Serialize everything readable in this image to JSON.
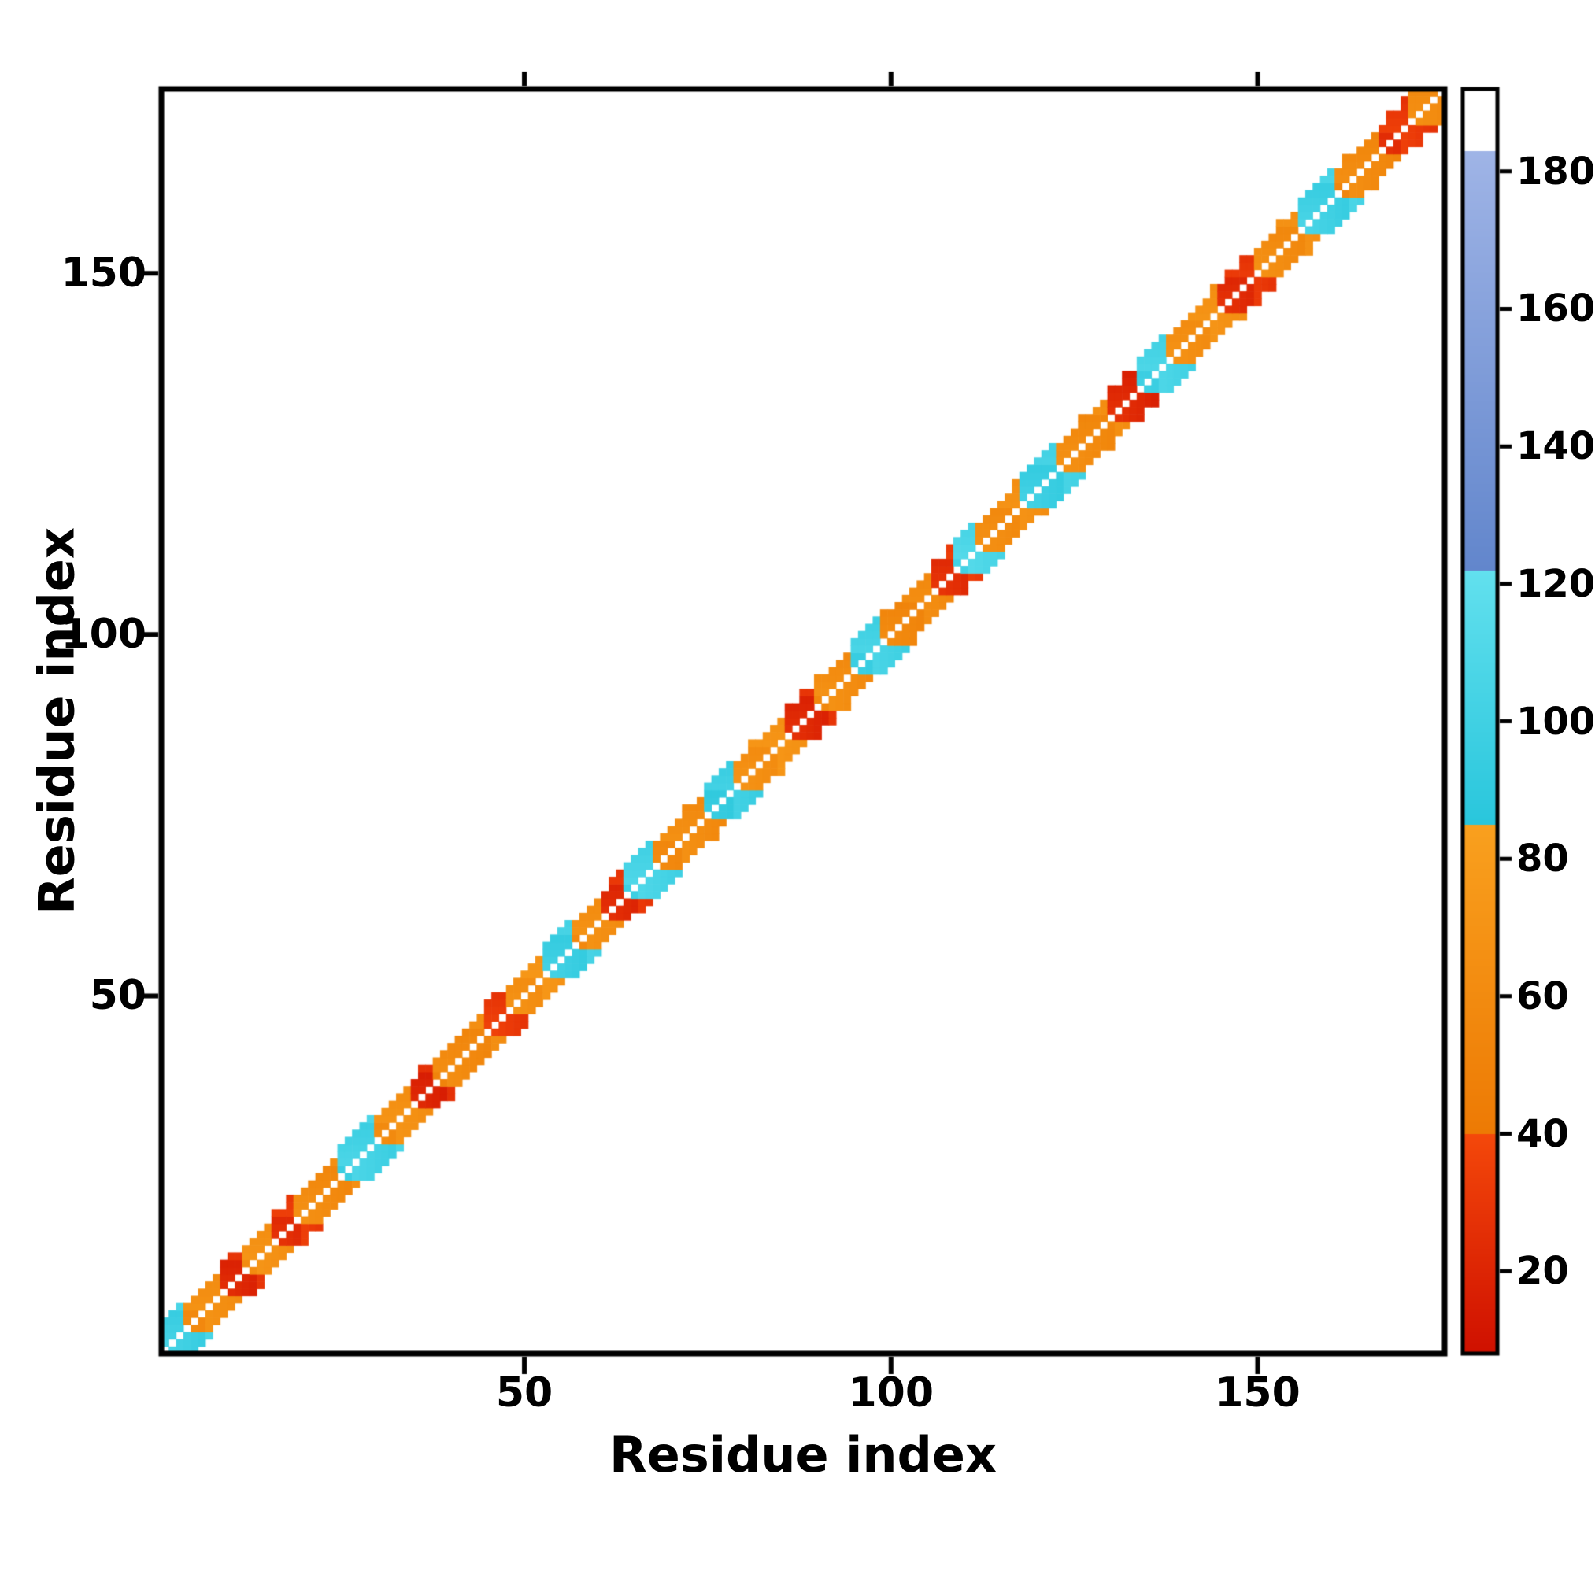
{
  "chart_data": {
    "type": "heatmap",
    "title": "",
    "xlabel": "Residue index",
    "ylabel": "Residue index",
    "n_residues": 175,
    "x_range": [
      1,
      175
    ],
    "y_range": [
      1,
      175
    ],
    "x_ticks": [
      50,
      100,
      150
    ],
    "y_ticks": [
      50,
      100,
      150
    ],
    "grid": false,
    "background": "#ffffff",
    "colorbar": {
      "range": [
        8,
        192
      ],
      "ticks": [
        20,
        40,
        60,
        80,
        100,
        120,
        140,
        160,
        180
      ],
      "bands": [
        {
          "from": 8,
          "to": 40,
          "c0": "#cf1000",
          "c1": "#f4480a"
        },
        {
          "from": 40,
          "to": 85,
          "c0": "#ed7a04",
          "c1": "#f9a01e"
        },
        {
          "from": 85,
          "to": 122,
          "c0": "#29c6dc",
          "c1": "#62e0ee"
        },
        {
          "from": 122,
          "to": 183,
          "c0": "#6286cc",
          "c1": "#9fb4e6"
        },
        {
          "from": 183,
          "to": 192,
          "c0": "#ffffff",
          "c1": "#ffffff"
        }
      ]
    },
    "band_offsets": [
      1,
      2,
      3
    ],
    "wide_offset": 4,
    "diagonal_segments": [
      {
        "from": 1,
        "to": 3,
        "v": 100
      },
      {
        "from": 4,
        "to": 8,
        "v": 62
      },
      {
        "from": 9,
        "to": 11,
        "v": 24
      },
      {
        "from": 12,
        "to": 15,
        "v": 66
      },
      {
        "from": 16,
        "to": 18,
        "v": 28
      },
      {
        "from": 19,
        "to": 24,
        "v": 60
      },
      {
        "from": 25,
        "to": 29,
        "v": 102
      },
      {
        "from": 30,
        "to": 34,
        "v": 64
      },
      {
        "from": 35,
        "to": 37,
        "v": 22
      },
      {
        "from": 38,
        "to": 44,
        "v": 58
      },
      {
        "from": 45,
        "to": 47,
        "v": 30
      },
      {
        "from": 48,
        "to": 52,
        "v": 68
      },
      {
        "from": 53,
        "to": 56,
        "v": 98
      },
      {
        "from": 57,
        "to": 60,
        "v": 62
      },
      {
        "from": 61,
        "to": 63,
        "v": 26
      },
      {
        "from": 64,
        "to": 67,
        "v": 104
      },
      {
        "from": 68,
        "to": 74,
        "v": 60
      },
      {
        "from": 75,
        "to": 78,
        "v": 96
      },
      {
        "from": 79,
        "to": 85,
        "v": 66
      },
      {
        "from": 86,
        "to": 89,
        "v": 24
      },
      {
        "from": 90,
        "to": 94,
        "v": 62
      },
      {
        "from": 95,
        "to": 98,
        "v": 100
      },
      {
        "from": 99,
        "to": 105,
        "v": 58
      },
      {
        "from": 106,
        "to": 108,
        "v": 28
      },
      {
        "from": 109,
        "to": 111,
        "v": 106
      },
      {
        "from": 112,
        "to": 117,
        "v": 64
      },
      {
        "from": 118,
        "to": 122,
        "v": 98
      },
      {
        "from": 123,
        "to": 129,
        "v": 60
      },
      {
        "from": 130,
        "to": 133,
        "v": 22
      },
      {
        "from": 134,
        "to": 137,
        "v": 102
      },
      {
        "from": 138,
        "to": 144,
        "v": 66
      },
      {
        "from": 145,
        "to": 149,
        "v": 26
      },
      {
        "from": 150,
        "to": 155,
        "v": 62
      },
      {
        "from": 156,
        "to": 160,
        "v": 100
      },
      {
        "from": 161,
        "to": 166,
        "v": 58
      },
      {
        "from": 167,
        "to": 170,
        "v": 30
      },
      {
        "from": 171,
        "to": 175,
        "v": 64
      }
    ]
  }
}
